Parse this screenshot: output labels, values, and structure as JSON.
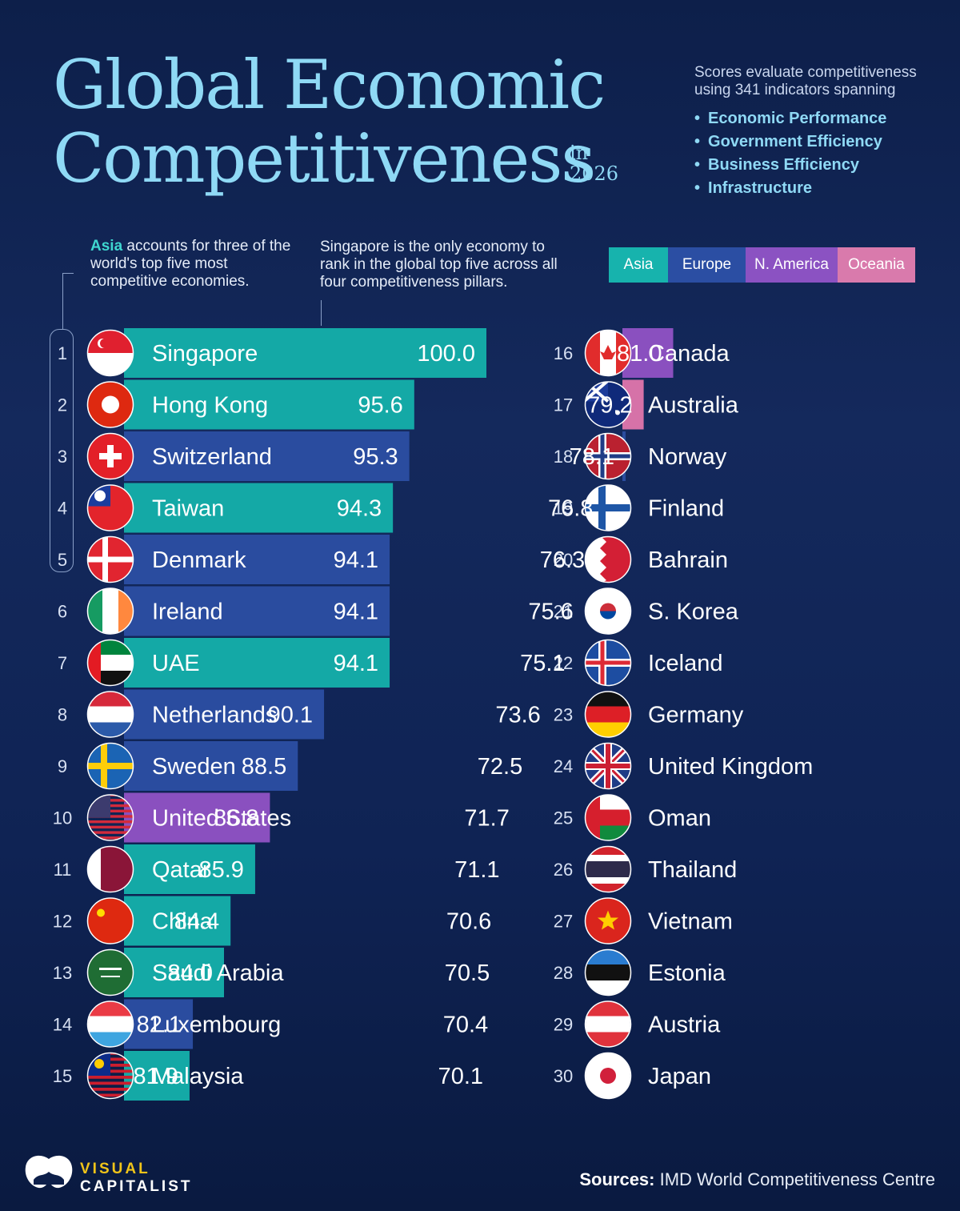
{
  "title": {
    "line1": "Global Economic",
    "line2": "Competitiveness",
    "in": "in",
    "year": "2026"
  },
  "intro": "Scores evaluate competitiveness using 341 indicators spanning",
  "pillars": [
    "Economic Performance",
    "Government Efficiency",
    "Business Efficiency",
    "Infrastructure"
  ],
  "notes": {
    "asia_highlight": "Asia",
    "asia_rest": " accounts for three of the world's top five most competitive economies.",
    "singapore": "Singapore is the only economy to rank in the global top five across all four competitiveness pillars."
  },
  "legend": [
    {
      "label": "Asia",
      "color": "#17b3ad"
    },
    {
      "label": "Europe",
      "color": "#2b4ea3"
    },
    {
      "label": "N. America",
      "color": "#8b52c2"
    },
    {
      "label": "Oceania",
      "color": "#d97aac"
    }
  ],
  "colors": {
    "Asia": "#14a9a6",
    "Europe": "#2a4c9f",
    "N. America": "#8a50bf",
    "Oceania": "#d672a8"
  },
  "chart_data": {
    "type": "bar",
    "orientation": "horizontal",
    "series": [
      {
        "values": [
          100.0,
          95.6,
          95.3,
          94.3,
          94.1,
          94.1,
          94.1,
          90.1,
          88.5,
          86.8,
          85.9,
          84.4,
          84.0,
          82.1,
          81.9,
          81.0,
          79.2,
          78.1,
          76.8,
          76.3,
          75.6,
          75.1,
          73.6,
          72.5,
          71.7,
          71.1,
          70.6,
          70.5,
          70.4,
          70.1
        ]
      }
    ],
    "categories": [
      "Singapore",
      "Hong Kong",
      "Switzerland",
      "Taiwan",
      "Denmark",
      "Ireland",
      "UAE",
      "Netherlands",
      "Sweden",
      "United States",
      "Qatar",
      "China",
      "Saudi Arabia",
      "Luxembourg",
      "Malaysia",
      "Canada",
      "Australia",
      "Norway",
      "Finland",
      "Bahrain",
      "S. Korea",
      "Iceland",
      "Germany",
      "United Kingdom",
      "Oman",
      "Thailand",
      "Vietnam",
      "Estonia",
      "Austria",
      "Japan"
    ],
    "ranks": [
      1,
      2,
      3,
      4,
      5,
      6,
      7,
      8,
      9,
      10,
      11,
      12,
      13,
      14,
      15,
      16,
      17,
      18,
      19,
      20,
      21,
      22,
      23,
      24,
      25,
      26,
      27,
      28,
      29,
      30
    ],
    "regions": [
      "Asia",
      "Asia",
      "Europe",
      "Asia",
      "Europe",
      "Europe",
      "Asia",
      "Europe",
      "Europe",
      "N. America",
      "Asia",
      "Asia",
      "Asia",
      "Europe",
      "Asia",
      "N. America",
      "Oceania",
      "Europe",
      "Europe",
      "Asia",
      "Asia",
      "Europe",
      "Europe",
      "Europe",
      "Asia",
      "Asia",
      "Asia",
      "Europe",
      "Europe",
      "Asia"
    ],
    "flags": [
      "singapore-flag",
      "hong-kong-flag",
      "switzerland-flag",
      "taiwan-flag",
      "denmark-flag",
      "ireland-flag",
      "uae-flag",
      "netherlands-flag",
      "sweden-flag",
      "united-states-flag",
      "qatar-flag",
      "china-flag",
      "saudi-arabia-flag",
      "luxembourg-flag",
      "malaysia-flag",
      "canada-flag",
      "australia-flag",
      "norway-flag",
      "finland-flag",
      "bahrain-flag",
      "south-korea-flag",
      "iceland-flag",
      "germany-flag",
      "united-kingdom-flag",
      "oman-flag",
      "thailand-flag",
      "vietnam-flag",
      "estonia-flag",
      "austria-flag",
      "japan-flag"
    ]
  },
  "logo": {
    "line1": "VISUAL",
    "line2": "CAPITALIST"
  },
  "sources": {
    "label": "Sources:",
    "text": " IMD World Competitiveness Centre"
  }
}
